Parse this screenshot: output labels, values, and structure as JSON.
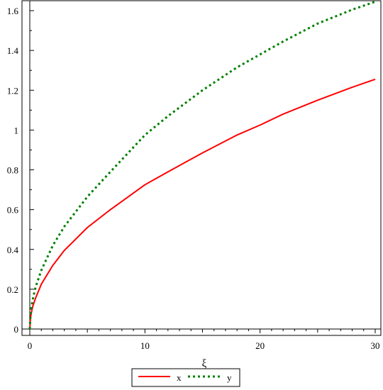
{
  "chart_data": {
    "type": "line",
    "title": "",
    "xlabel": "ξ",
    "ylabel": "",
    "xlim": [
      0,
      30
    ],
    "ylim": [
      0,
      1.65
    ],
    "x_ticks": [
      0,
      10,
      20,
      30
    ],
    "x_tick_labels": [
      "0",
      "10",
      "20",
      "30"
    ],
    "y_ticks": [
      0,
      0.2,
      0.4,
      0.6,
      0.8,
      1,
      1.2,
      1.4,
      1.6
    ],
    "y_tick_labels": [
      "0",
      "0.2",
      "0.4",
      "0.6",
      "0.8",
      "1",
      "1.2",
      "1.4",
      "1.6"
    ],
    "grid": false,
    "legend_position": "bottom-center",
    "series": [
      {
        "name": "x",
        "color": "#ff0000",
        "style": "solid",
        "x": [
          0,
          0.05,
          0.1,
          0.2,
          0.3,
          0.5,
          1,
          2,
          3,
          5,
          7,
          10,
          12,
          15,
          18,
          20,
          22,
          25,
          28,
          30
        ],
        "y": [
          0,
          0.045,
          0.07,
          0.1,
          0.122,
          0.155,
          0.225,
          0.32,
          0.395,
          0.51,
          0.6,
          0.725,
          0.79,
          0.885,
          0.975,
          1.025,
          1.08,
          1.15,
          1.215,
          1.255
        ]
      },
      {
        "name": "y",
        "color": "#008000",
        "style": "dotted",
        "x": [
          0,
          0.05,
          0.1,
          0.2,
          0.3,
          0.5,
          1,
          2,
          3,
          5,
          7,
          10,
          12,
          15,
          18,
          20,
          22,
          25,
          28,
          30
        ],
        "y": [
          0,
          0.06,
          0.09,
          0.13,
          0.16,
          0.21,
          0.295,
          0.42,
          0.515,
          0.665,
          0.79,
          0.975,
          1.07,
          1.2,
          1.315,
          1.38,
          1.445,
          1.535,
          1.605,
          1.645
        ]
      }
    ]
  }
}
